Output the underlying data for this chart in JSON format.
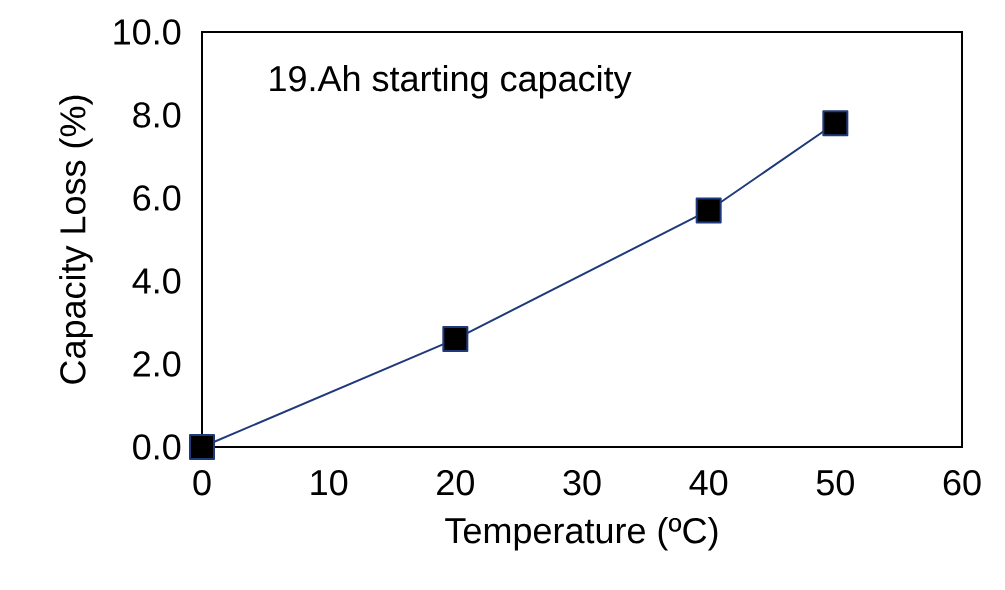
{
  "chart_data": {
    "type": "line",
    "xlabel": "Temperature (ºC)",
    "ylabel": "Capacity Loss (%)",
    "annotations": [
      "19.Ah starting capacity"
    ],
    "x": [
      0,
      20,
      40,
      50
    ],
    "series": [
      {
        "color": "#1f3a7a",
        "values": [
          0,
          2.6,
          5.7,
          7.8
        ]
      }
    ],
    "xlim": [
      0,
      60
    ],
    "xticks": [
      0,
      10,
      20,
      30,
      40,
      50,
      60
    ],
    "ylim": [
      0,
      10
    ],
    "yticks": [
      {
        "value": 0,
        "label": "0.0"
      },
      {
        "value": 2,
        "label": "2.0"
      },
      {
        "value": 4,
        "label": "4.0"
      },
      {
        "value": 6,
        "label": "6.0"
      },
      {
        "value": 8,
        "label": "8.0"
      },
      {
        "value": 10,
        "label": "10.0"
      }
    ],
    "marker": "square",
    "line_style": "solid",
    "grid": false
  }
}
